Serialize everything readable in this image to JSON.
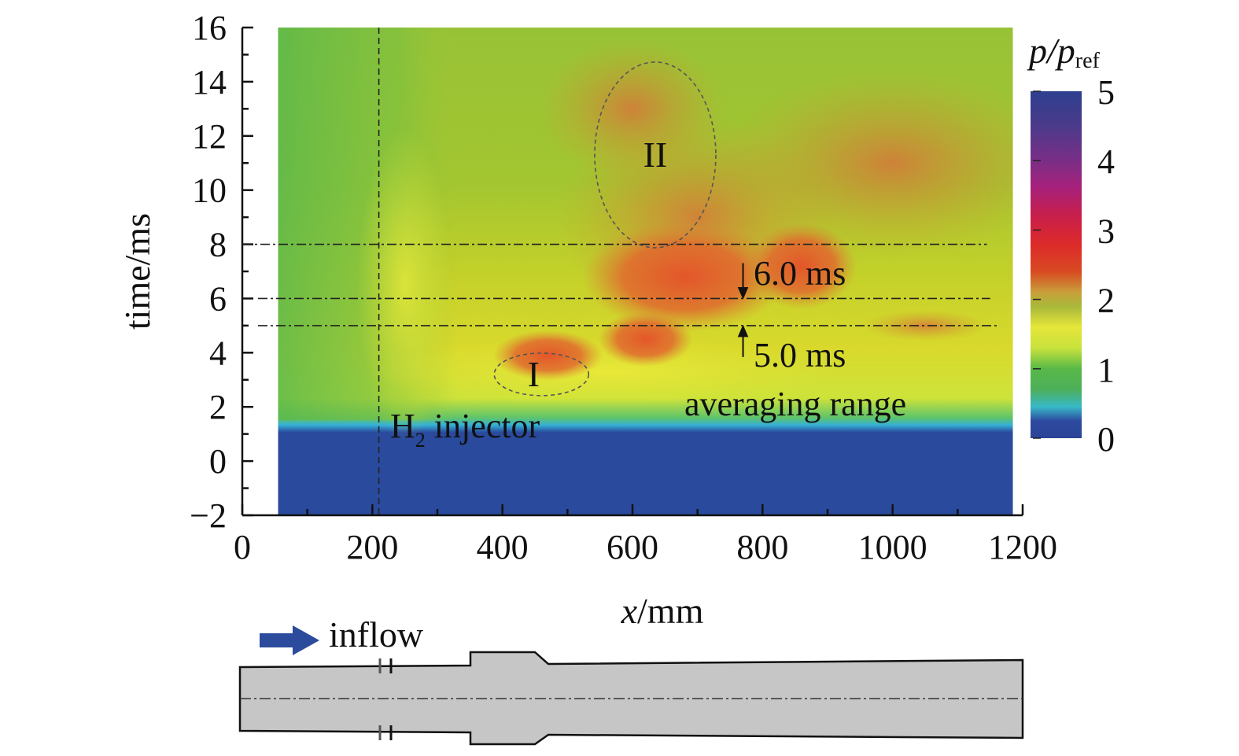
{
  "chart_data": {
    "type": "heatmap",
    "title": "",
    "xlabel_var": "x",
    "xlabel_unit": "/mm",
    "ylabel": "time/ms",
    "xlim": [
      0,
      1200
    ],
    "ylim": [
      -2,
      16
    ],
    "xticks": [
      "0",
      "200",
      "400",
      "600",
      "800",
      "1000",
      "1200"
    ],
    "yticks": [
      "−2",
      "0",
      "2",
      "4",
      "6",
      "8",
      "10",
      "12",
      "14",
      "16"
    ],
    "data_extent_x": [
      55,
      1185
    ],
    "colorbar": {
      "label_main": "p/p",
      "label_sub": "ref",
      "range": [
        0,
        5
      ],
      "ticks": [
        "0",
        "1",
        "2",
        "3",
        "4",
        "5"
      ]
    },
    "reference_lines": {
      "injector_x": 210,
      "averaging_start_ms": 5.0,
      "averaging_end_ms": 6.0,
      "upper_line_ms": 8.0
    },
    "annotations": {
      "injector_label": "H",
      "injector_sub": "2",
      "injector_rest": " injector",
      "avg_start_label": "5.0 ms",
      "avg_end_label": "6.0 ms",
      "averaging_label": "averaging range",
      "region_1": "I",
      "region_2": "II"
    },
    "regions": [
      {
        "name": "I",
        "x": 460,
        "t": 3.2
      },
      {
        "name": "II",
        "x": 635,
        "t": 11.3
      }
    ]
  },
  "schematic": {
    "inflow_label": "inflow"
  }
}
